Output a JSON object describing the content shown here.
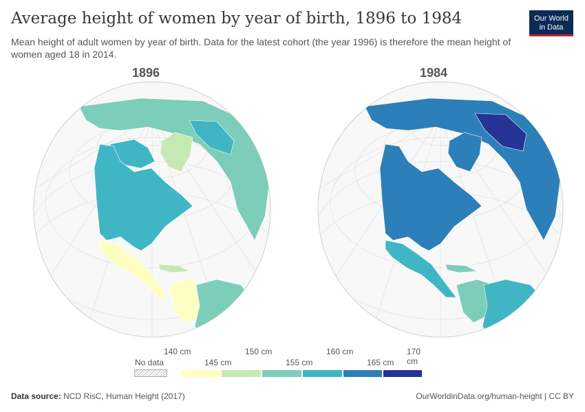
{
  "title": "Average height of women by year of birth, 1896 to 1984",
  "subtitle": "Mean height of adult women by year of birth. Data for the latest cohort (the year 1996) is therefore the mean height of women aged 18 in 2014.",
  "logo": {
    "line1": "Our World",
    "line2": "in Data"
  },
  "maps": [
    {
      "year": "1896",
      "regions": {
        "north_america": "155–160 cm",
        "central_america": "140–145 cm",
        "south_america": "150–155 cm",
        "greenland": "145–150 cm",
        "russia_asia": "150–155 cm",
        "caribbean": "145–150 cm"
      }
    },
    {
      "year": "1984",
      "regions": {
        "north_america": "160–165 cm",
        "central_america": "155–160 cm",
        "south_america": "155–160 cm",
        "greenland": "160–165 cm",
        "russia_asia": "160–165 cm",
        "caribbean": "155–160 cm"
      }
    }
  ],
  "legend": {
    "no_data_label": "No data",
    "ticks_top": [
      "140 cm",
      "150 cm",
      "160 cm",
      "170 cm"
    ],
    "ticks_bottom": [
      "145 cm",
      "155 cm",
      "165 cm"
    ],
    "colors": [
      "#fefec2",
      "#c6e9b4",
      "#7dcdbb",
      "#40b6c4",
      "#2c7fb8",
      "#253494"
    ]
  },
  "colors": {
    "ocean": "#f8f8f8",
    "grid": "#dddddd",
    "nodata": "#bbbbbb"
  },
  "footer": {
    "source_label": "Data source:",
    "source_text": "NCD RisC, Human Height (2017)",
    "url": "OurWorldinData.org/human-height | CC BY"
  }
}
